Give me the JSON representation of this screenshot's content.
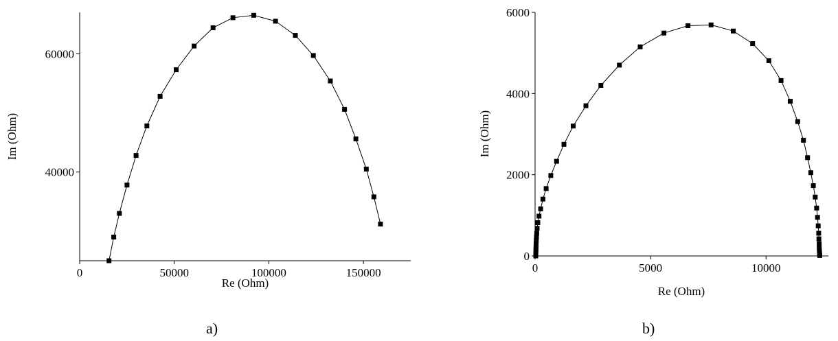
{
  "panels": [
    {
      "label": "a)"
    },
    {
      "label": "b)"
    }
  ],
  "chart_data": [
    {
      "type": "scatter",
      "xlabel": "Re (Ohm)",
      "ylabel": "Im (Ohm)",
      "xlim": [
        0,
        175000
      ],
      "ylim": [
        25000,
        67000
      ],
      "xticks": [
        0,
        50000,
        100000,
        150000
      ],
      "yticks": [
        40000,
        60000
      ],
      "xtick_labels": [
        "0",
        "50000",
        "100000",
        "150000"
      ],
      "ytick_labels": [
        "40000",
        "60000"
      ],
      "grid": false,
      "connected": true,
      "marker": "square",
      "x": [
        15500,
        18000,
        21000,
        25000,
        29800,
        35500,
        42500,
        51000,
        60500,
        70500,
        81000,
        92000,
        103500,
        114000,
        123500,
        132500,
        140000,
        146000,
        151500,
        155500,
        159000
      ],
      "y": [
        25000,
        29000,
        33000,
        37800,
        42800,
        47800,
        52800,
        57300,
        61300,
        64400,
        66100,
        66500,
        65500,
        63100,
        59700,
        55400,
        50600,
        45600,
        40500,
        35800,
        31200
      ]
    },
    {
      "type": "scatter",
      "xlabel": "Re (Ohm)",
      "ylabel": "Im (Ohm)",
      "xlim": [
        0,
        12700
      ],
      "ylim": [
        0,
        6000
      ],
      "xticks": [
        0,
        5000,
        10000
      ],
      "yticks": [
        0,
        2000,
        4000,
        6000
      ],
      "xtick_labels": [
        "0",
        "5000",
        "10000"
      ],
      "ytick_labels": [
        "0",
        "2000",
        "4000",
        "6000"
      ],
      "grid": false,
      "connected": true,
      "marker": "square",
      "x": [
        30,
        32,
        35,
        38,
        42,
        46,
        52,
        60,
        70,
        90,
        120,
        170,
        240,
        340,
        480,
        680,
        930,
        1250,
        1650,
        2200,
        2850,
        3650,
        4550,
        5580,
        6620,
        7620,
        8580,
        9420,
        10120,
        10650,
        11050,
        11370,
        11620,
        11800,
        11940,
        12050,
        12130,
        12190,
        12230,
        12260,
        12280,
        12290,
        12300,
        12305,
        12310,
        12315,
        12320,
        12325
      ],
      "y": [
        0,
        60,
        120,
        180,
        240,
        300,
        380,
        460,
        560,
        680,
        820,
        980,
        1160,
        1400,
        1660,
        1980,
        2330,
        2750,
        3200,
        3700,
        4200,
        4700,
        5150,
        5490,
        5670,
        5690,
        5540,
        5230,
        4810,
        4320,
        3810,
        3310,
        2850,
        2420,
        2050,
        1730,
        1450,
        1180,
        950,
        740,
        560,
        420,
        300,
        200,
        130,
        80,
        40,
        10
      ]
    }
  ]
}
